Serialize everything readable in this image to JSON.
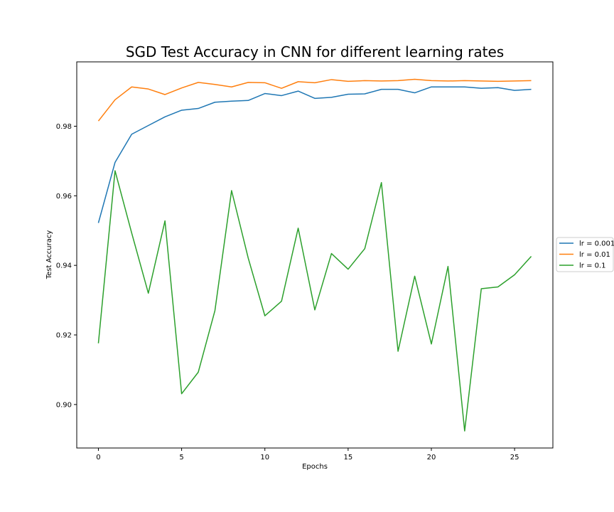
{
  "chart_data": {
    "type": "line",
    "title": "SGD Test Accuracy in CNN for different learning rates",
    "xlabel": "Epochs",
    "ylabel": "Test Accuracy",
    "xlim": [
      -1.3,
      27.3
    ],
    "ylim": [
      0.8875,
      0.9985
    ],
    "xticks": [
      0,
      5,
      10,
      15,
      20,
      25
    ],
    "xtick_labels": [
      "0",
      "5",
      "10",
      "15",
      "20",
      "25"
    ],
    "yticks": [
      0.9,
      0.92,
      0.94,
      0.96,
      0.98
    ],
    "ytick_labels": [
      "0.90",
      "0.92",
      "0.94",
      "0.96",
      "0.98"
    ],
    "grid": false,
    "legend_position": "right, outside",
    "x": [
      0,
      1,
      2,
      3,
      4,
      5,
      6,
      7,
      8,
      9,
      10,
      11,
      12,
      13,
      14,
      15,
      16,
      17,
      18,
      19,
      20,
      21,
      22,
      23,
      24,
      25,
      26
    ],
    "series": [
      {
        "name": "lr = 0.001",
        "color": "#1f77b4",
        "values": [
          0.9522,
          0.9696,
          0.9777,
          0.9802,
          0.9827,
          0.9846,
          0.9851,
          0.9869,
          0.9872,
          0.9874,
          0.9894,
          0.9888,
          0.9901,
          0.988,
          0.9883,
          0.9892,
          0.9893,
          0.9906,
          0.9906,
          0.9896,
          0.9913,
          0.9913,
          0.9913,
          0.9909,
          0.9911,
          0.9903,
          0.9906
        ]
      },
      {
        "name": "lr = 0.01",
        "color": "#ff7f0e",
        "values": [
          0.9815,
          0.9876,
          0.9913,
          0.9907,
          0.9891,
          0.991,
          0.9926,
          0.992,
          0.9913,
          0.9926,
          0.9925,
          0.9909,
          0.9928,
          0.9925,
          0.9934,
          0.9929,
          0.9931,
          0.993,
          0.9931,
          0.9935,
          0.9931,
          0.993,
          0.9931,
          0.993,
          0.9929,
          0.993,
          0.9931
        ]
      },
      {
        "name": "lr = 0.1",
        "color": "#2ca02c",
        "values": [
          0.9176,
          0.9672,
          0.9493,
          0.932,
          0.9528,
          0.9031,
          0.9093,
          0.927,
          0.9615,
          0.9421,
          0.9255,
          0.9297,
          0.9507,
          0.9272,
          0.9434,
          0.9389,
          0.9448,
          0.9638,
          0.9153,
          0.9369,
          0.9174,
          0.9397,
          0.8924,
          0.9333,
          0.9338,
          0.9373,
          0.9426
        ]
      }
    ]
  }
}
